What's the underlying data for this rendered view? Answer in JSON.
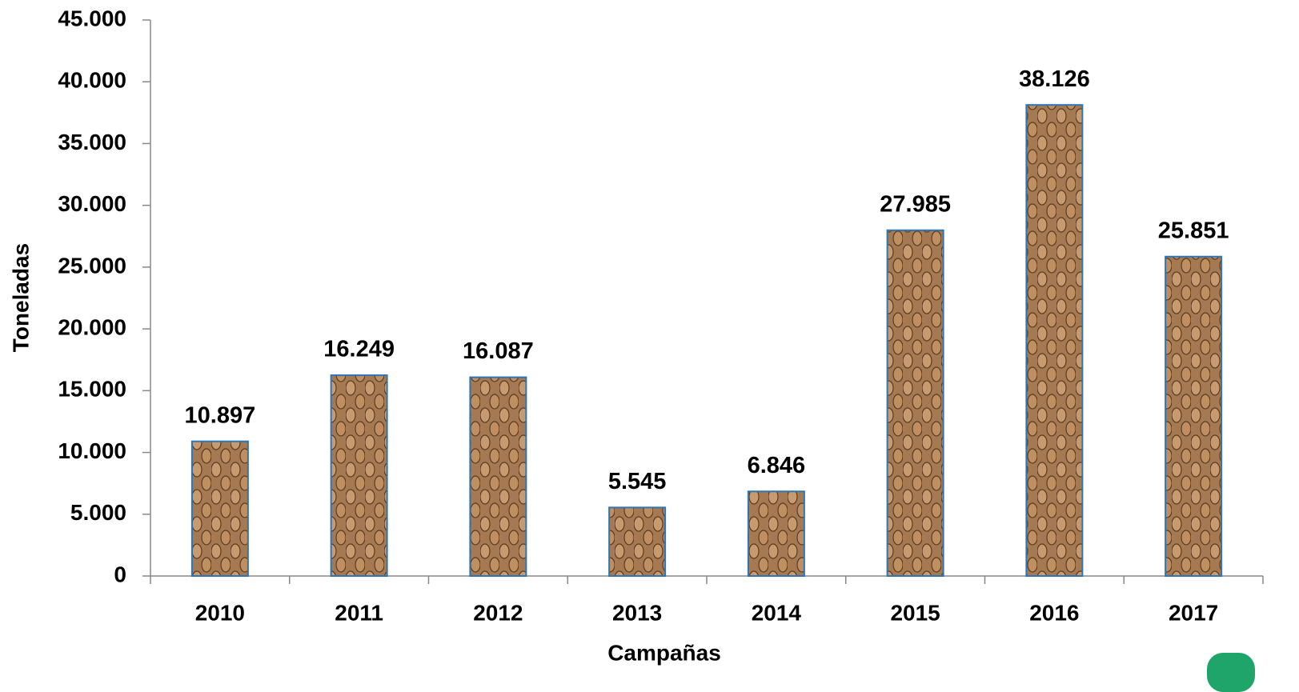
{
  "chart_data": {
    "type": "bar",
    "y_label": "Toneladas",
    "x_label": "Campañas",
    "categories": [
      "2010",
      "2011",
      "2012",
      "2013",
      "2014",
      "2015",
      "2016",
      "2017"
    ],
    "values": [
      10897,
      16249,
      16087,
      5545,
      6846,
      27985,
      38126,
      25851
    ],
    "value_labels": [
      "10.897",
      "16.249",
      "16.087",
      "5.545",
      "6.846",
      "27.985",
      "38.126",
      "25.851"
    ],
    "color": "#a57a52",
    "edgecolor": "#2e75b6",
    "ylim": [
      0,
      45000
    ],
    "yticks": [
      0,
      {
        "value": 5000,
        "label": "5.000"
      },
      {
        "value": 10000,
        "label": "10.000"
      },
      {
        "value": 15000,
        "label": "15.000"
      },
      {
        "value": 20000,
        "label": "20.000"
      },
      {
        "value": 25000,
        "label": "25.000"
      },
      {
        "value": 30000,
        "label": "30.000"
      },
      {
        "value": 35000,
        "label": "35.000"
      },
      {
        "value": 40000,
        "label": "40.000"
      },
      {
        "value": 45000,
        "label": "45.000"
      }
    ]
  }
}
